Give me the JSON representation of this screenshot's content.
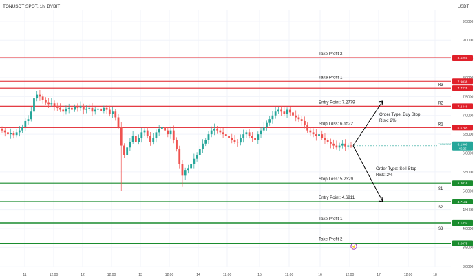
{
  "header": {
    "symbol_info": "TONUSDT SPOT, 1h, BYBIT",
    "currency": "USDT"
  },
  "colors": {
    "red_line": "#e0202a",
    "green_line": "#1a8c2e",
    "bull_candle": "#26a69a",
    "bear_candle": "#ef5350",
    "current_price_tag": "#26a69a",
    "grid": "#f0f3fa",
    "axis_text": "#4a4a4a",
    "dark_label": "#1f1f1f"
  },
  "axis": {
    "y_ticks": [
      "9.5000",
      "9.0000",
      "8.5000",
      "8.0000",
      "7.5000",
      "7.0000",
      "6.5000",
      "6.0000",
      "5.5000",
      "5.0000",
      "4.5000",
      "4.0000",
      "3.5000",
      "3.0000"
    ],
    "x_ticks": [
      "11",
      "12:00",
      "12",
      "12:00",
      "13",
      "12:00",
      "14",
      "12:00",
      "15",
      "12:00",
      "16",
      "12:00",
      "17",
      "12:00",
      "18"
    ],
    "y_range": [
      2.8,
      9.85
    ]
  },
  "levels": [
    {
      "label": "Take Profit 2",
      "value": "8.5293",
      "price": 8.5293,
      "color": "red",
      "side": ""
    },
    {
      "label": "Take Profit 1",
      "value": "7.9036",
      "price": 7.9036,
      "color": "red",
      "side": ""
    },
    {
      "label": "",
      "value": "7.7225",
      "price": 7.7225,
      "color": "red",
      "side": "R3"
    },
    {
      "label": "Entry Point: 7.2779",
      "value": "7.2446",
      "price": 7.2446,
      "color": "red",
      "side": "R2"
    },
    {
      "label": "Stop Loss: 6.6522",
      "value": "6.6785",
      "price": 6.6785,
      "color": "red",
      "side": "R1"
    },
    {
      "label": "Stop Loss: 5.2329",
      "value": "5.2016",
      "price": 5.2016,
      "color": "green",
      "side": "S1"
    },
    {
      "label": "Entry Point: 4.6911",
      "value": "4.7132",
      "price": 4.7132,
      "color": "green",
      "side": "S2"
    },
    {
      "label": "",
      "value": "4.1493",
      "price": 4.1493,
      "color": "green",
      "side": ""
    },
    {
      "label": "Take Profit 1",
      "value": "4.1434",
      "price": 4.1434,
      "color": "green",
      "side": "S3"
    },
    {
      "label": "Take Profit 2",
      "value": "3.6075",
      "price": 3.6075,
      "color": "green",
      "side": ""
    }
  ],
  "current_price": {
    "symbol": "TONUSDT",
    "value": "6.1960",
    "countdown": "45:25",
    "price": 6.196
  },
  "orders": {
    "buy": {
      "type": "Order Type: Buy Stop",
      "risk": "Risk: 2%"
    },
    "sell": {
      "type": "Order Type: Sell Stop",
      "risk": "Risk: 2%"
    }
  },
  "chart_data": {
    "type": "candlestick",
    "x_unit": "hourly bars from 11 to 16 12:00",
    "close": [
      6.6,
      6.55,
      6.5,
      6.52,
      6.48,
      6.55,
      6.6,
      6.7,
      6.85,
      6.9,
      7.1,
      7.45,
      7.55,
      7.5,
      7.4,
      7.35,
      7.3,
      7.32,
      7.25,
      7.2,
      7.15,
      7.1,
      7.18,
      7.2,
      7.15,
      7.22,
      7.2,
      7.25,
      7.15,
      7.18,
      7.2,
      7.1,
      7.15,
      7.18,
      7.12,
      7.2,
      7.15,
      7.05,
      7.1,
      6.95,
      6.7,
      6.2,
      5.95,
      6.15,
      6.3,
      6.45,
      6.3,
      6.4,
      6.55,
      6.6,
      6.45,
      6.3,
      6.4,
      6.55,
      6.65,
      6.7,
      6.6,
      6.5,
      6.6,
      6.35,
      6.1,
      5.7,
      5.4,
      5.55,
      5.6,
      5.7,
      5.85,
      5.95,
      6.1,
      6.25,
      6.35,
      6.5,
      6.6,
      6.65,
      6.6,
      6.55,
      6.5,
      6.45,
      6.4,
      6.35,
      6.3,
      6.28,
      6.4,
      6.5,
      6.55,
      6.45,
      6.4,
      6.35,
      6.5,
      6.6,
      6.7,
      6.8,
      6.9,
      7.0,
      7.1,
      7.15,
      7.1,
      7.05,
      7.15,
      7.08,
      7.0,
      6.95,
      6.9,
      6.85,
      6.75,
      6.6,
      6.55,
      6.5,
      6.45,
      6.5,
      6.4,
      6.35,
      6.3,
      6.25,
      6.2,
      6.15,
      6.2,
      6.25,
      6.18,
      6.2,
      6.196
    ],
    "open_first": 6.65,
    "wick_extremes": [
      {
        "bar": 41,
        "low": 5.0
      },
      {
        "bar": 62,
        "low": 5.1
      }
    ]
  }
}
